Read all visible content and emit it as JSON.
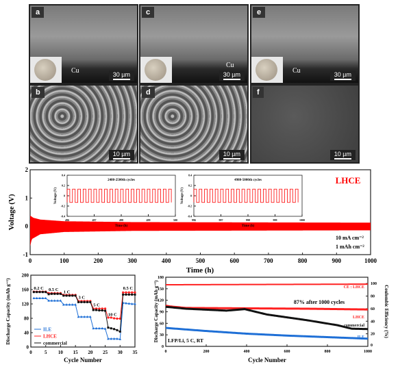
{
  "sem_panels": [
    {
      "label": "a",
      "scale": "30 µm",
      "cu": "Cu"
    },
    {
      "label": "b",
      "scale": "10 µm"
    },
    {
      "label": "c",
      "scale": "30 µm",
      "cu": "Cu"
    },
    {
      "label": "d",
      "scale": "10 µm"
    },
    {
      "label": "e",
      "scale": "30 µm",
      "cu": "Cu"
    },
    {
      "label": "f",
      "scale": "10 µm"
    }
  ],
  "chart_data": [
    {
      "type": "line",
      "ylabel": "Voltage (V)",
      "xlabel": "Time (h)",
      "xlim": [
        0,
        1000
      ],
      "ylim": [
        -1,
        2
      ],
      "xticks": [
        0,
        100,
        200,
        300,
        400,
        500,
        600,
        700,
        800,
        900,
        1000
      ],
      "yticks": [
        -1,
        0,
        1,
        2
      ],
      "legend": "LHCE",
      "color": "#ff0000",
      "annotations": [
        "10 mA cm⁻²",
        "1 mAh cm⁻²"
      ],
      "envelope_upper": [
        [
          0,
          0.38
        ],
        [
          10,
          0.3
        ],
        [
          30,
          0.24
        ],
        [
          100,
          0.18
        ],
        [
          300,
          0.15
        ],
        [
          1000,
          0.13
        ]
      ],
      "envelope_lower": [
        [
          0,
          -0.7
        ],
        [
          5,
          -0.45
        ],
        [
          30,
          -0.28
        ],
        [
          100,
          -0.2
        ],
        [
          300,
          -0.16
        ],
        [
          1000,
          -0.14
        ]
      ],
      "insets": [
        {
          "title": "2480-2500th cycles",
          "xlabel": "Time (h)",
          "ylabel": "Voltage (V)",
          "xticks": [
            496,
            497,
            498,
            499,
            500
          ],
          "yticks": [
            -0.4,
            -0.2,
            0.0,
            0.2,
            0.4
          ],
          "amplitude": 0.13,
          "cycles": 20
        },
        {
          "title": "4980-5000th cycles",
          "xlabel": "Time (h)",
          "ylabel": "Voltage (V)",
          "xticks": [
            996,
            997,
            998,
            999,
            1000
          ],
          "yticks": [
            -0.4,
            -0.2,
            0.0,
            0.2,
            0.4
          ],
          "amplitude": 0.13,
          "cycles": 20
        }
      ]
    },
    {
      "type": "line",
      "xlabel": "Cycle Number",
      "ylabel": "Discharge Capacity (mAh g⁻¹)",
      "xlim": [
        0,
        35
      ],
      "ylim": [
        0,
        200
      ],
      "xticks": [
        0,
        5,
        10,
        15,
        20,
        25,
        30,
        35
      ],
      "yticks": [
        0,
        40,
        80,
        120,
        160,
        200
      ],
      "legend": "bottom-left",
      "rate_labels": [
        {
          "text": "0.2 C",
          "x": 1,
          "y": 160
        },
        {
          "text": "0.5 C",
          "x": 6,
          "y": 156
        },
        {
          "text": "1 C",
          "x": 11,
          "y": 150
        },
        {
          "text": "3 C",
          "x": 16,
          "y": 134
        },
        {
          "text": "5 C",
          "x": 21,
          "y": 113
        },
        {
          "text": "10 C",
          "x": 26,
          "y": 87
        },
        {
          "text": "0.5 C",
          "x": 31,
          "y": 160
        }
      ],
      "x": [
        1,
        2,
        3,
        4,
        5,
        6,
        7,
        8,
        9,
        10,
        11,
        12,
        13,
        14,
        15,
        16,
        17,
        18,
        19,
        20,
        21,
        22,
        23,
        24,
        25,
        26,
        27,
        28,
        29,
        30,
        31,
        32,
        33,
        34,
        35
      ],
      "series": [
        {
          "name": "ILE",
          "color": "#1e6fd6",
          "marker": "triangle",
          "values": [
            136,
            136,
            136,
            136,
            136,
            129,
            129,
            129,
            129,
            129,
            118,
            118,
            118,
            118,
            118,
            84,
            84,
            84,
            84,
            84,
            52,
            52,
            52,
            52,
            51,
            23,
            23,
            23,
            23,
            22,
            123,
            122,
            121,
            120,
            120
          ]
        },
        {
          "name": "LHCE",
          "color": "#ff2020",
          "marker": "circle",
          "values": [
            154,
            154,
            154,
            154,
            154,
            150,
            150,
            150,
            150,
            150,
            145,
            145,
            145,
            145,
            145,
            128,
            128,
            128,
            128,
            128,
            107,
            107,
            107,
            107,
            107,
            82,
            82,
            80,
            79,
            79,
            152,
            152,
            152,
            152,
            152
          ]
        },
        {
          "name": "commercial",
          "color": "#111111",
          "marker": "square",
          "values": [
            153,
            153,
            153,
            153,
            153,
            147,
            148,
            148,
            148,
            148,
            143,
            143,
            143,
            143,
            143,
            125,
            125,
            125,
            125,
            125,
            103,
            103,
            102,
            102,
            101,
            54,
            52,
            50,
            47,
            43,
            146,
            146,
            146,
            146,
            146
          ]
        }
      ]
    },
    {
      "type": "line",
      "xlabel": "Cycle Number",
      "ylabel": "Discharge Capacity (mAh g⁻¹)",
      "ylabel_right": "Coulombic Efficiency (%)",
      "xlim": [
        0,
        1000
      ],
      "ylim": [
        0,
        180
      ],
      "ylim_right": [
        0,
        110
      ],
      "xticks": [
        0,
        200,
        400,
        600,
        800,
        1000
      ],
      "yticks": [
        0,
        30,
        60,
        90,
        120,
        150,
        180
      ],
      "yticks_right": [
        0,
        20,
        40,
        60,
        80,
        100
      ],
      "annotations": [
        "87% after 1000 cycles",
        "LFP/Li, 5 C, RT"
      ],
      "series": [
        {
          "name": "CE : LHCE",
          "axis": "right",
          "color": "#ff2020",
          "points": [
            [
              0,
              98
            ],
            [
              1000,
              99
            ]
          ]
        },
        {
          "name": "LHCE",
          "color": "#ff2020",
          "points": [
            [
              0,
              106
            ],
            [
              20,
              104
            ],
            [
              100,
              100
            ],
            [
              400,
              99
            ],
            [
              700,
              98
            ],
            [
              1000,
              96
            ]
          ]
        },
        {
          "name": "commercial",
          "color": "#111111",
          "points": [
            [
              0,
              103
            ],
            [
              100,
              98
            ],
            [
              300,
              93
            ],
            [
              390,
              97
            ],
            [
              500,
              83
            ],
            [
              700,
              68
            ],
            [
              850,
              55
            ],
            [
              920,
              46
            ],
            [
              1000,
              45
            ]
          ]
        },
        {
          "name": "ILE",
          "color": "#1e6fd6",
          "points": [
            [
              0,
              48
            ],
            [
              200,
              40
            ],
            [
              400,
              33
            ],
            [
              600,
              28
            ],
            [
              800,
              24
            ],
            [
              1000,
              20
            ]
          ]
        }
      ]
    }
  ]
}
